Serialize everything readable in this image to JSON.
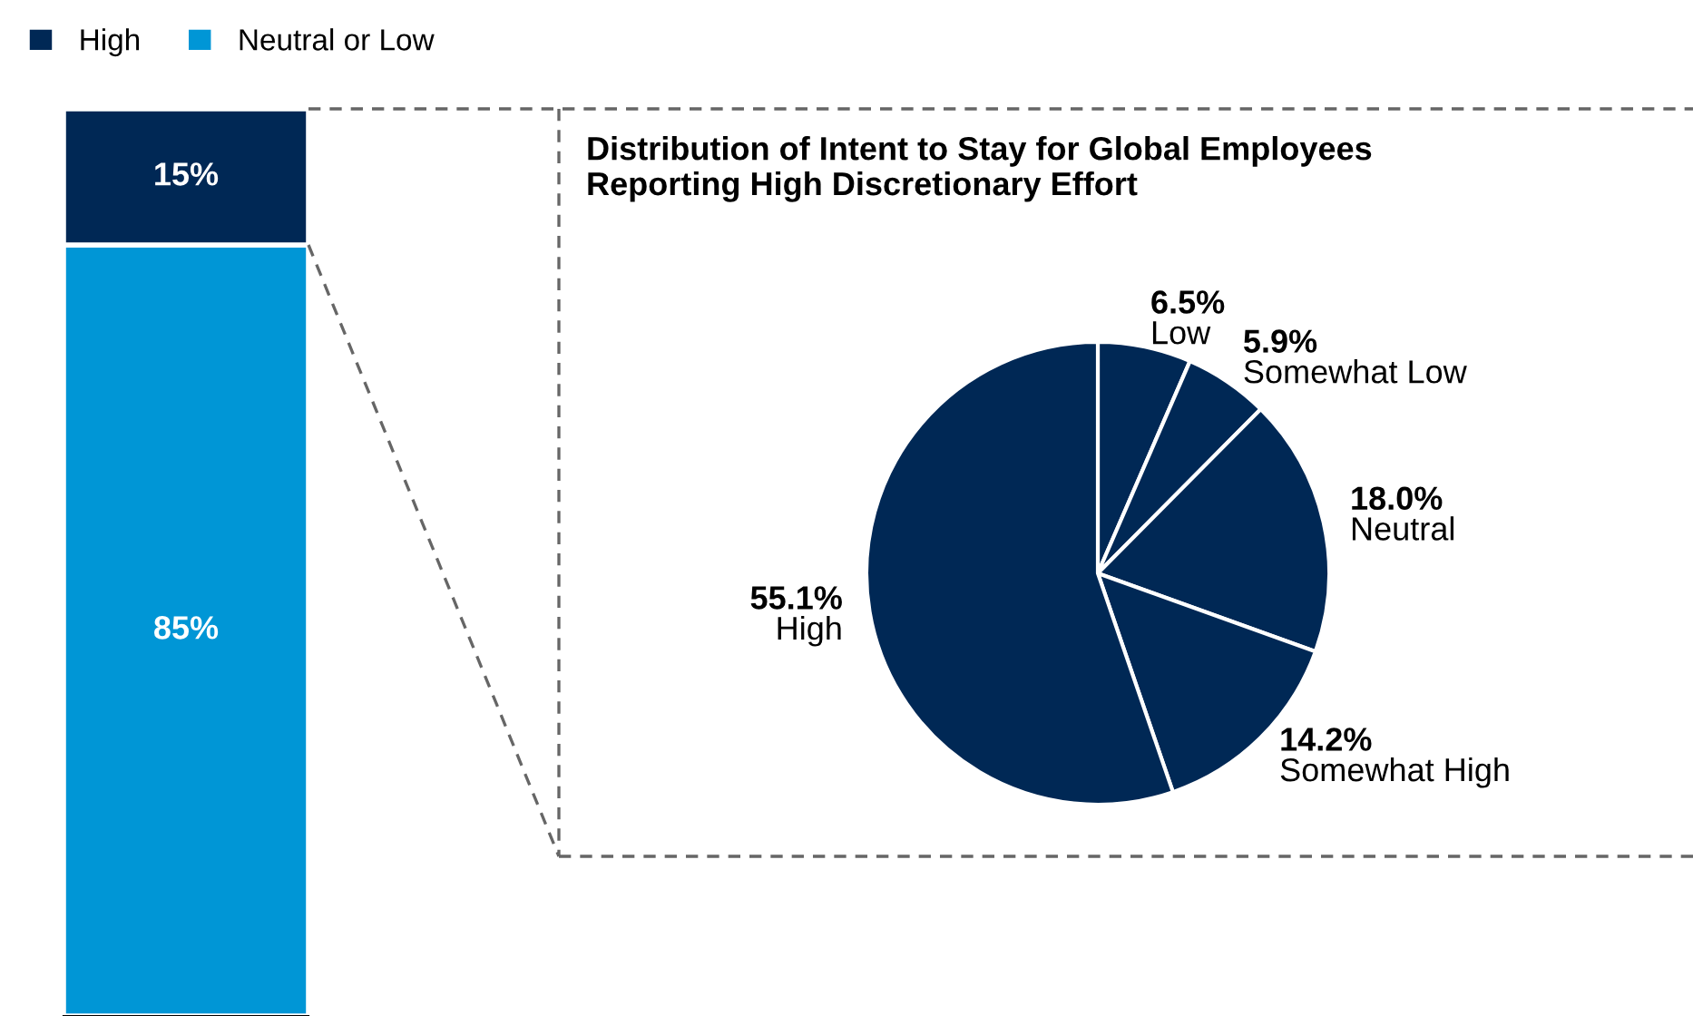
{
  "chart_data": [
    {
      "type": "bar",
      "stacked": true,
      "categories": [
        null
      ],
      "legend": "top",
      "series": [
        {
          "name": "Neutral or Low",
          "color": "#0096d6",
          "values": [
            85
          ],
          "value_labels": [
            "85%"
          ]
        },
        {
          "name": "High",
          "color": "#002855",
          "values": [
            15
          ],
          "value_labels": [
            "15%"
          ]
        }
      ]
    },
    {
      "type": "pie",
      "title": "Distribution of Intent to Stay for Global Employees\nReporting High Discretionary Effort",
      "categories": [
        "Low",
        "Somewhat Low",
        "Neutral",
        "Somewhat High",
        "High"
      ],
      "values": [
        6.5,
        5.9,
        18.0,
        14.2,
        55.1
      ],
      "value_labels": [
        "6.5%",
        "5.9%",
        "18.0%",
        "14.2%",
        "55.1%"
      ],
      "colors": [
        "#002855",
        "#002855",
        "#002855",
        "#002855",
        "#002855"
      ]
    }
  ]
}
